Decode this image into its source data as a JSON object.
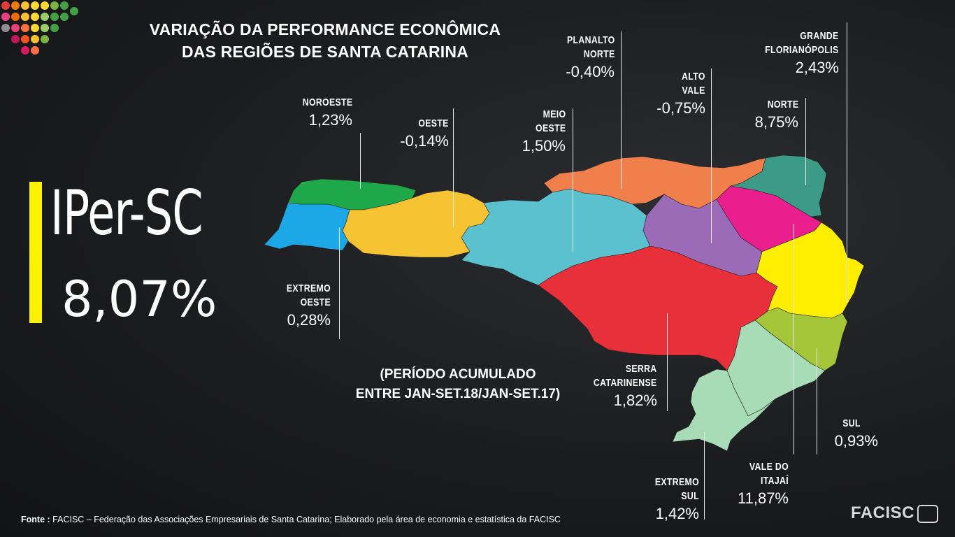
{
  "title": {
    "line1": "VARIAÇÃO DA PERFORMANCE ECONÔMICA",
    "line2": "DAS REGIÕES DE SANTA CATARINA"
  },
  "indicator": {
    "name": "IPer-SC",
    "value": "8,07%",
    "accent_color": "#fff200"
  },
  "period": {
    "line1": "(PERÍODO ACUMULADO",
    "line2": "ENTRE JAN-SET.18/JAN-SET.17)"
  },
  "regions": [
    {
      "id": "extremo-oeste",
      "name_lines": [
        "EXTREMO",
        "OESTE"
      ],
      "value": "0,28%",
      "color": "#1ca7e6"
    },
    {
      "id": "noroeste",
      "name_lines": [
        "NOROESTE"
      ],
      "value": "1,23%",
      "color": "#1fa84a"
    },
    {
      "id": "oeste",
      "name_lines": [
        "OESTE"
      ],
      "value": "-0,14%",
      "color": "#f6c333"
    },
    {
      "id": "meio-oeste",
      "name_lines": [
        "MEIO",
        "OESTE"
      ],
      "value": "1,50%",
      "color": "#5bc1cf"
    },
    {
      "id": "planalto-norte",
      "name_lines": [
        "PLANALTO",
        "NORTE"
      ],
      "value": "-0,40%",
      "color": "#f07f4b"
    },
    {
      "id": "alto-vale",
      "name_lines": [
        "ALTO",
        "VALE"
      ],
      "value": "-0,75%",
      "color": "#9b6bb8"
    },
    {
      "id": "grande-florianopolis",
      "name_lines": [
        "GRANDE",
        "FLORIANÓPOLIS"
      ],
      "value": "2,43%",
      "color": "#a6c63a"
    },
    {
      "id": "norte",
      "name_lines": [
        "NORTE"
      ],
      "value": "8,75%",
      "color": "#3c9b86"
    },
    {
      "id": "serra-catarinense",
      "name_lines": [
        "SERRA",
        "CATARINENSE"
      ],
      "value": "1,82%",
      "color": "#e8303a"
    },
    {
      "id": "sul",
      "name_lines": [
        "SUL"
      ],
      "value": "0,93%",
      "color": "#a8dcb6"
    },
    {
      "id": "vale-do-itajai",
      "name_lines": [
        "VALE DO",
        "ITAJAÍ"
      ],
      "value": "11,87%",
      "color": "#ffee00"
    },
    {
      "id": "extremo-sul",
      "name_lines": [
        "EXTREMO",
        "SUL"
      ],
      "value": "1,42%",
      "color": "#a8dcb6"
    },
    {
      "id": "norte-alto",
      "name_lines": [],
      "value": "",
      "color": "#ea1e8c"
    }
  ],
  "source": {
    "label": "Fonte :",
    "text": "FACISC – Federação das Associações Empresariais de Santa Catarina; Elaborado pela área de economia e estatística da FACISC"
  },
  "brand": {
    "name": "FACISC",
    "icon": "facisc-logo-icon"
  },
  "logo": {
    "icon": "dot-grid-logo-icon"
  }
}
